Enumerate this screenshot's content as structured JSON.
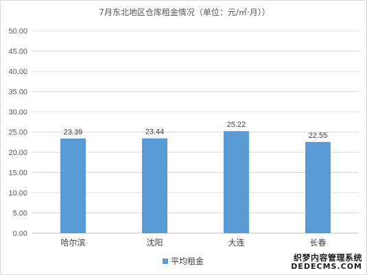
{
  "chart_data": {
    "type": "bar",
    "title": "7月东北地区仓库租金情况（单位：元/㎡·月））",
    "categories": [
      "哈尔滨",
      "沈阳",
      "大连",
      "长春"
    ],
    "series": [
      {
        "name": "平均租金",
        "values": [
          23.39,
          23.44,
          25.22,
          22.55
        ],
        "color": "#5b9bd5"
      }
    ],
    "data_labels": [
      "23.39",
      "23.44",
      "25.22",
      "22.55"
    ],
    "ylim": [
      0,
      50
    ],
    "yticks": [
      "0.00",
      "5.00",
      "10.00",
      "15.00",
      "20.00",
      "25.00",
      "30.00",
      "35.00",
      "40.00",
      "45.00",
      "50.00"
    ],
    "grid": true,
    "legend_position": "bottom"
  },
  "watermark": {
    "line1": "织梦内容管理系统",
    "line2": "DEDECMS.COM"
  }
}
